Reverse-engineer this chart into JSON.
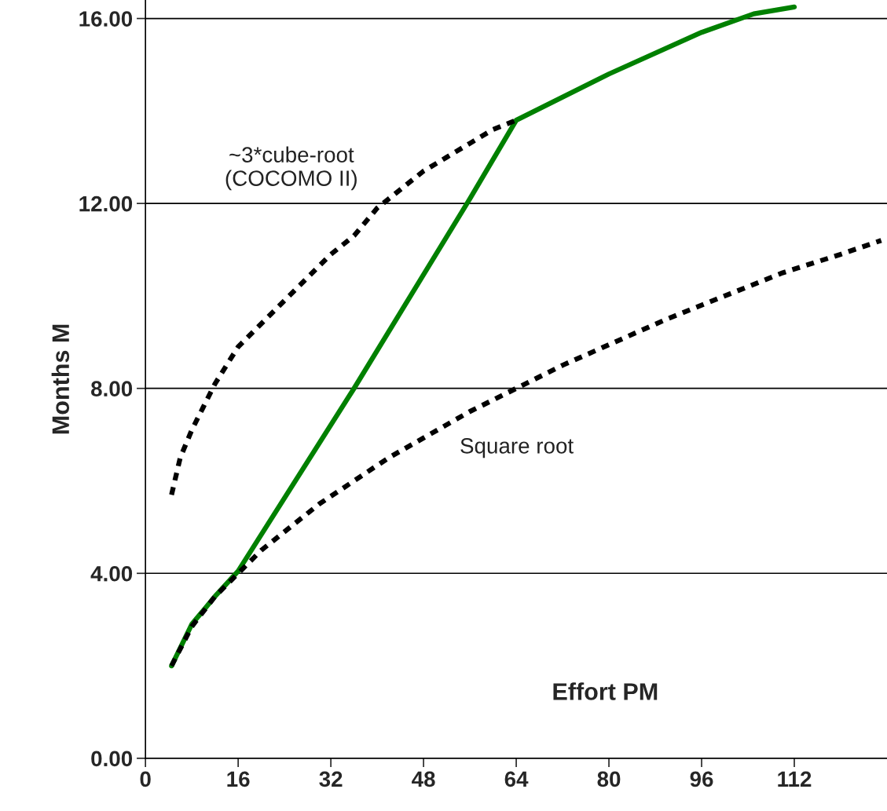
{
  "chart_data": {
    "type": "line",
    "xlabel": "Effort PM",
    "ylabel": "Months M",
    "xlim": [
      0,
      128
    ],
    "ylim": [
      0,
      16.4
    ],
    "xticks": [
      0,
      16,
      32,
      48,
      64,
      80,
      96,
      112
    ],
    "yticks": [
      {
        "value": 0,
        "label": "0.00"
      },
      {
        "value": 4,
        "label": "4.00"
      },
      {
        "value": 8,
        "label": "8.00"
      },
      {
        "value": 12,
        "label": "12.00"
      },
      {
        "value": 16,
        "label": "16.00"
      }
    ],
    "grid": "y",
    "legend": false,
    "series": [
      {
        "name": "~3*cube-root\n(COCOMO II)",
        "color": "#000000",
        "line_style": "dashed",
        "x": [
          4.5,
          6,
          8,
          10,
          12,
          16,
          20,
          24,
          28,
          32,
          36,
          40,
          44,
          48,
          52,
          56,
          60,
          64
        ],
        "values": [
          5.7,
          6.5,
          7.1,
          7.6,
          8.1,
          8.9,
          9.4,
          9.9,
          10.4,
          10.9,
          11.3,
          11.9,
          12.3,
          12.7,
          13.0,
          13.3,
          13.6,
          13.8
        ]
      },
      {
        "name": "Square root",
        "color": "#000000",
        "line_style": "dashed",
        "x": [
          4.5,
          8,
          12,
          16,
          20,
          25,
          30,
          36,
          42,
          49,
          56,
          64,
          72,
          81,
          90,
          100,
          110,
          120,
          127
        ],
        "values": [
          2.0,
          2.85,
          3.5,
          4.0,
          4.5,
          5.0,
          5.5,
          6.0,
          6.5,
          7.0,
          7.5,
          8.0,
          8.5,
          9.0,
          9.5,
          10.0,
          10.5,
          10.9,
          11.2
        ]
      },
      {
        "color": "#008000",
        "line_style": "solid",
        "x": [
          4.5,
          8,
          12,
          16,
          36,
          56,
          64,
          80,
          96,
          105,
          112
        ],
        "values": [
          2.0,
          2.9,
          3.5,
          4.05,
          8.0,
          12.1,
          13.8,
          14.8,
          15.7,
          16.1,
          16.25
        ]
      }
    ]
  }
}
